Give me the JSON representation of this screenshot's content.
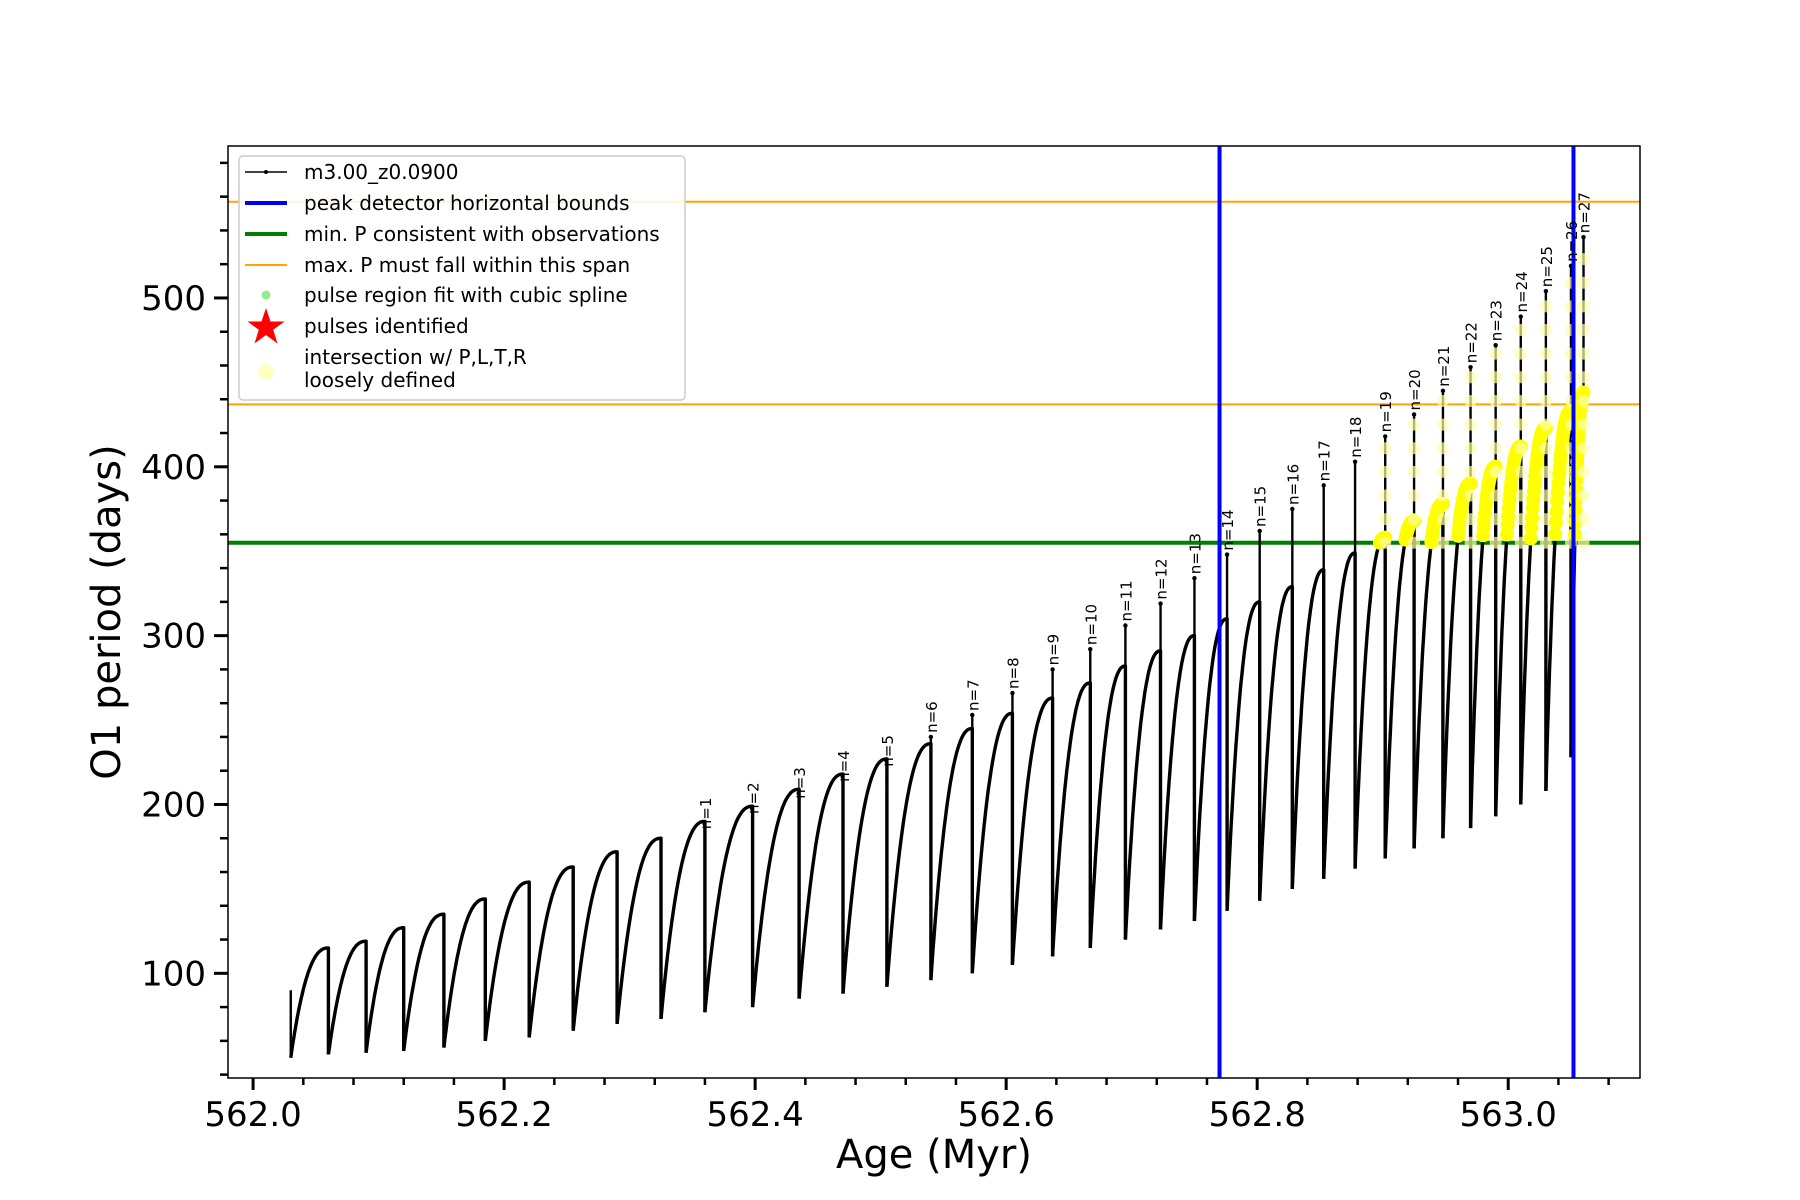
{
  "chart_data": {
    "type": "line",
    "title": "",
    "xlabel": "Age (Myr)",
    "ylabel": "O1 period (days)",
    "xlim": [
      561.98,
      563.105
    ],
    "ylim": [
      38,
      590
    ],
    "xticks": [
      562.0,
      562.2,
      562.4,
      562.6,
      562.8,
      563.0
    ],
    "xtick_labels": [
      "562.0",
      "562.2",
      "562.4",
      "562.6",
      "562.8",
      "563.0"
    ],
    "yticks": [
      100,
      200,
      300,
      400,
      500
    ],
    "ytick_labels": [
      "100",
      "200",
      "300",
      "400",
      "500"
    ],
    "grid": false,
    "legend_position": "upper-left",
    "legend": [
      {
        "label": "m3.00_z0.0900",
        "kind": "line-marker",
        "color": "#000000"
      },
      {
        "label": "peak detector horizontal bounds",
        "kind": "line",
        "color": "#0000ff"
      },
      {
        "label": "min. P consistent with observations",
        "kind": "line",
        "color": "#008000"
      },
      {
        "label": "max. P must fall within this span",
        "kind": "thin-line",
        "color": "#ffa500"
      },
      {
        "label": "pulse region fit with cubic spline",
        "kind": "dot",
        "color": "#90ee90"
      },
      {
        "label": "pulses identified",
        "kind": "star",
        "color": "#ff0000"
      },
      {
        "label": "intersection w/ P,L,T,R",
        "label2": "loosely defined",
        "kind": "circle",
        "color": "#ffffaa"
      }
    ],
    "reference_lines": {
      "peak_detector_bounds_x": [
        562.77,
        563.052
      ],
      "min_period_y": 355,
      "max_period_span_y": [
        437,
        557
      ]
    },
    "series": [
      {
        "name": "m3.00_z0.0900",
        "color": "#000000",
        "pulse_cycles": [
          {
            "n": "",
            "start": 562.03,
            "end": 562.06,
            "min": 50,
            "max": 115,
            "spike": 90
          },
          {
            "n": "",
            "start": 562.06,
            "end": 562.09,
            "min": 52,
            "max": 119,
            "spike": 0
          },
          {
            "n": "",
            "start": 562.09,
            "end": 562.12,
            "min": 53,
            "max": 127,
            "spike": 0
          },
          {
            "n": "",
            "start": 562.12,
            "end": 562.152,
            "min": 54,
            "max": 135,
            "spike": 0
          },
          {
            "n": "",
            "start": 562.152,
            "end": 562.185,
            "min": 56,
            "max": 144,
            "spike": 0
          },
          {
            "n": "",
            "start": 562.185,
            "end": 562.22,
            "min": 60,
            "max": 154,
            "spike": 0
          },
          {
            "n": "",
            "start": 562.22,
            "end": 562.255,
            "min": 62,
            "max": 163,
            "spike": 0
          },
          {
            "n": "",
            "start": 562.255,
            "end": 562.29,
            "min": 66,
            "max": 172,
            "spike": 0
          },
          {
            "n": "",
            "start": 562.29,
            "end": 562.325,
            "min": 70,
            "max": 180,
            "spike": 0
          },
          {
            "n": "n=1",
            "start": 562.325,
            "end": 562.36,
            "min": 73,
            "max": 190,
            "spike": 183
          },
          {
            "n": "n=2",
            "start": 562.36,
            "end": 562.398,
            "min": 77,
            "max": 199,
            "spike": 192
          },
          {
            "n": "n=3",
            "start": 562.398,
            "end": 562.435,
            "min": 80,
            "max": 209,
            "spike": 201
          },
          {
            "n": "n=4",
            "start": 562.435,
            "end": 562.47,
            "min": 85,
            "max": 218,
            "spike": 211
          },
          {
            "n": "n=5",
            "start": 562.47,
            "end": 562.505,
            "min": 88,
            "max": 227,
            "spike": 220
          },
          {
            "n": "n=6",
            "start": 562.505,
            "end": 562.54,
            "min": 92,
            "max": 236,
            "spike": 240
          },
          {
            "n": "n=7",
            "start": 562.54,
            "end": 562.573,
            "min": 96,
            "max": 245,
            "spike": 253
          },
          {
            "n": "n=8",
            "start": 562.573,
            "end": 562.605,
            "min": 100,
            "max": 254,
            "spike": 266
          },
          {
            "n": "n=9",
            "start": 562.605,
            "end": 562.637,
            "min": 105,
            "max": 263,
            "spike": 280
          },
          {
            "n": "n=10",
            "start": 562.637,
            "end": 562.667,
            "min": 110,
            "max": 272,
            "spike": 292
          },
          {
            "n": "n=11",
            "start": 562.667,
            "end": 562.695,
            "min": 115,
            "max": 282,
            "spike": 306
          },
          {
            "n": "n=12",
            "start": 562.695,
            "end": 562.723,
            "min": 120,
            "max": 291,
            "spike": 319
          },
          {
            "n": "n=13",
            "start": 562.723,
            "end": 562.75,
            "min": 126,
            "max": 300,
            "spike": 334
          },
          {
            "n": "n=14",
            "start": 562.75,
            "end": 562.776,
            "min": 131,
            "max": 310,
            "spike": 348
          },
          {
            "n": "n=15",
            "start": 562.776,
            "end": 562.802,
            "min": 137,
            "max": 320,
            "spike": 362
          },
          {
            "n": "n=16",
            "start": 562.802,
            "end": 562.828,
            "min": 143,
            "max": 329,
            "spike": 375
          },
          {
            "n": "n=17",
            "start": 562.828,
            "end": 562.853,
            "min": 150,
            "max": 339,
            "spike": 389
          },
          {
            "n": "n=18",
            "start": 562.853,
            "end": 562.878,
            "min": 156,
            "max": 349,
            "spike": 403
          },
          {
            "n": "n=19",
            "start": 562.878,
            "end": 562.902,
            "min": 162,
            "max": 358,
            "spike": 418
          },
          {
            "n": "n=20",
            "start": 562.902,
            "end": 562.925,
            "min": 168,
            "max": 368,
            "spike": 431
          },
          {
            "n": "n=21",
            "start": 562.925,
            "end": 562.948,
            "min": 174,
            "max": 378,
            "spike": 445
          },
          {
            "n": "n=22",
            "start": 562.948,
            "end": 562.97,
            "min": 180,
            "max": 390,
            "spike": 459
          },
          {
            "n": "n=23",
            "start": 562.97,
            "end": 562.99,
            "min": 186,
            "max": 400,
            "spike": 472
          },
          {
            "n": "n=24",
            "start": 562.99,
            "end": 563.01,
            "min": 193,
            "max": 412,
            "spike": 489
          },
          {
            "n": "n=25",
            "start": 563.01,
            "end": 563.03,
            "min": 200,
            "max": 423,
            "spike": 504
          },
          {
            "n": "n=26",
            "start": 563.03,
            "end": 563.05,
            "min": 208,
            "max": 433,
            "spike": 519
          },
          {
            "n": "n=27",
            "start": 563.05,
            "end": 563.06,
            "min": 228,
            "max": 444,
            "spike": 536
          }
        ]
      }
    ]
  }
}
